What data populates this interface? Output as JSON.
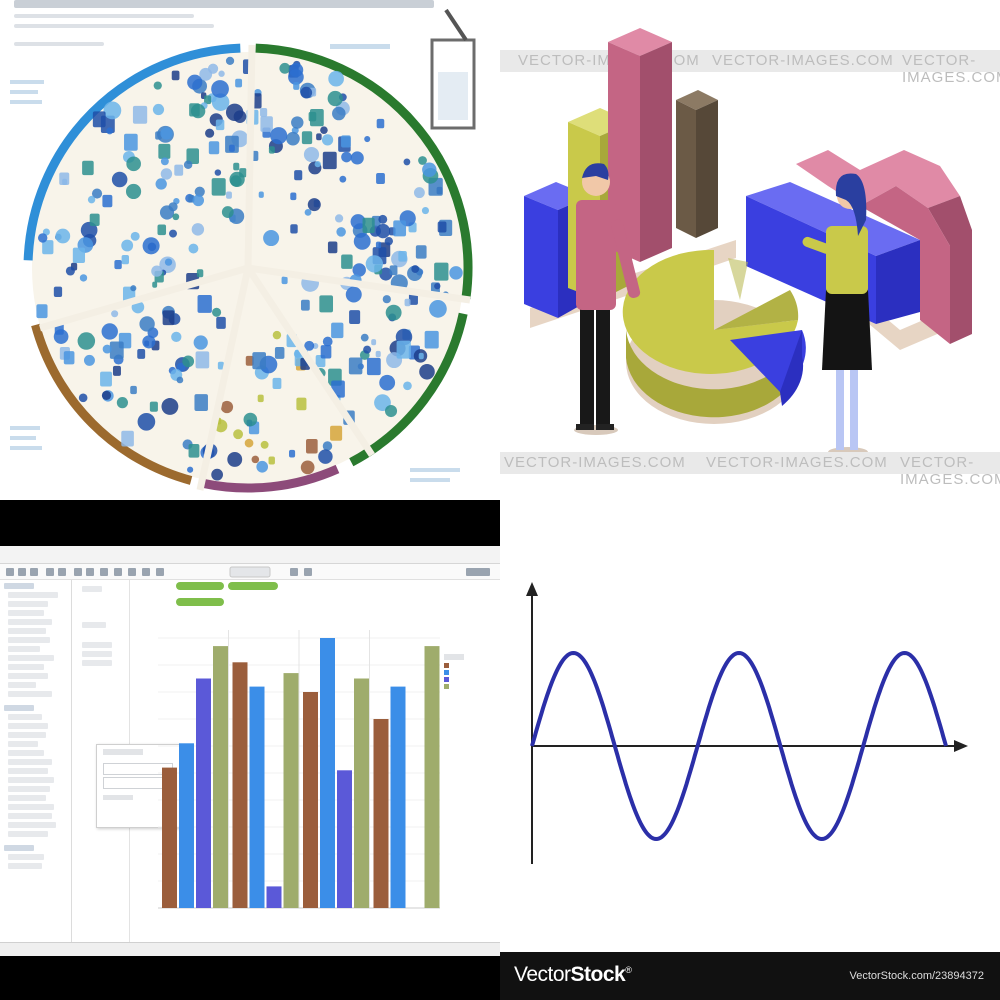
{
  "panels": {
    "diet_wheel": {
      "sections": [
        {
          "name": "blue",
          "color": "#2f8fd8"
        },
        {
          "name": "green",
          "color": "#2a7a2e"
        },
        {
          "name": "olive",
          "color": "#a3a43c"
        },
        {
          "name": "brown",
          "color": "#9c6a2e"
        },
        {
          "name": "purple",
          "color": "#8d4b7a"
        }
      ]
    },
    "infographic": {
      "watermark": "VECTOR-IMAGES.COM",
      "colors": {
        "blue": "#3a3fe0",
        "yellow": "#c9c94a",
        "pink": "#c46584",
        "brown": "#6b5a46",
        "base": "#e3d4c6"
      }
    },
    "analytics_app": {
      "chart_data": {
        "type": "bar",
        "title": "",
        "xlabel": "",
        "ylabel": "",
        "ylim": [
          0,
          1
        ],
        "groups": 4,
        "series": [
          {
            "color": "#9b5e3c",
            "values": [
              0.52,
              0.91,
              0.8,
              0.7
            ]
          },
          {
            "color": "#3b8ee8",
            "values": [
              0.61,
              0.82,
              1.0,
              0.82
            ]
          },
          {
            "color": "#5b59d8",
            "values": [
              0.85,
              0.08,
              0.51,
              0.0
            ]
          },
          {
            "color": "#9fac6c",
            "values": [
              0.97,
              0.87,
              0.85,
              0.97
            ]
          }
        ]
      }
    },
    "sine_wave": {
      "chart_data": {
        "type": "line",
        "title": "",
        "xlabel": "",
        "ylabel": "",
        "cycles": 2.5,
        "line_color": "#2b2fa8",
        "axis_color": "#222222"
      },
      "footer": {
        "logo_part1": "Vector",
        "logo_part2": "Stock",
        "logo_mark": "®",
        "url": "VectorStock.com/23894372"
      }
    }
  }
}
